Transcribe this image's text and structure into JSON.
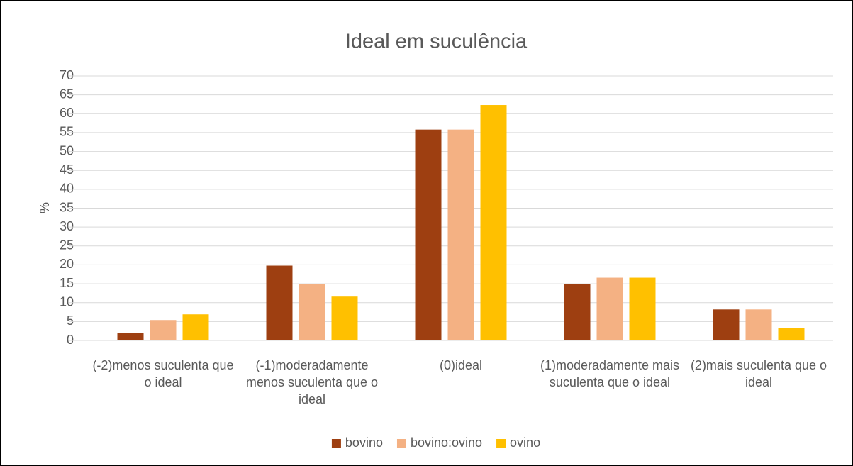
{
  "chart_data": {
    "type": "bar",
    "title": "Ideal em suculência",
    "y_label": "%",
    "categories": [
      "(-2)menos suculenta que o ideal",
      "(-1)moderadamente menos suculenta que o ideal",
      "(0)ideal",
      "(1)moderadamente mais suculenta que o ideal",
      "(2)mais suculenta que o ideal"
    ],
    "series": [
      {
        "name": "bovino",
        "color": "#9e3f11",
        "values": [
          1.9,
          19.8,
          55.8,
          14.9,
          8.2
        ]
      },
      {
        "name": "bovino:ovino",
        "color": "#f4b183",
        "values": [
          5.4,
          14.9,
          55.8,
          16.6,
          8.2
        ]
      },
      {
        "name": "ovino",
        "color": "#ffc000",
        "values": [
          6.9,
          11.6,
          62.3,
          16.6,
          3.3
        ]
      }
    ],
    "ylim": [
      0,
      70
    ],
    "yticks": [
      0,
      5,
      10,
      15,
      20,
      25,
      30,
      35,
      40,
      45,
      50,
      55,
      60,
      65,
      70
    ],
    "grid": true,
    "legend": "bottom"
  }
}
